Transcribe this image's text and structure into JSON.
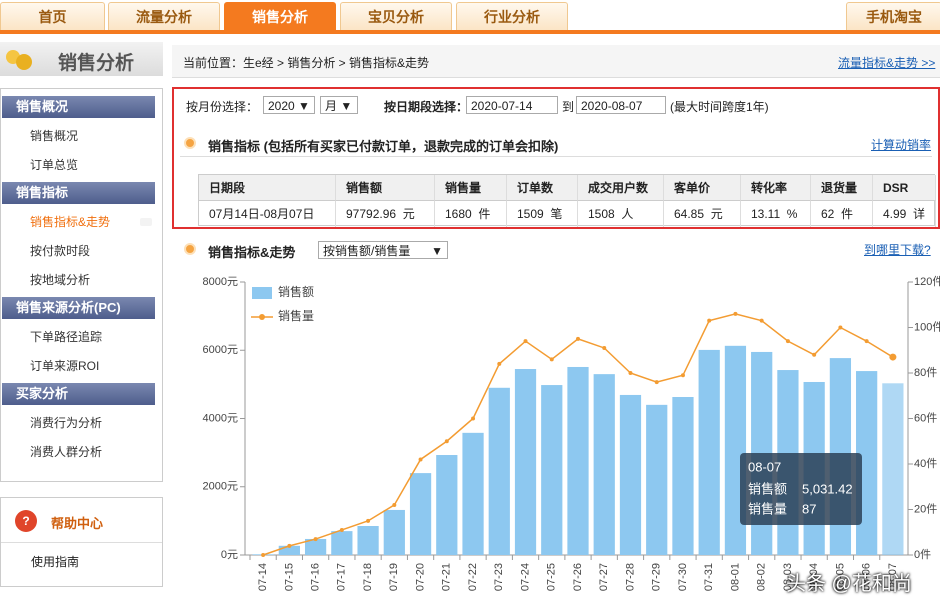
{
  "nav": {
    "tabs": [
      "首页",
      "流量分析",
      "销售分析",
      "宝贝分析",
      "行业分析"
    ],
    "active": 2,
    "right_tab": "手机淘宝"
  },
  "sidebar": {
    "title": "销售分析",
    "sections": [
      {
        "title": "销售概况",
        "items": [
          "销售概况",
          "订单总览"
        ]
      },
      {
        "title": "销售指标",
        "items": [
          "销售指标&走势",
          "按付款时段",
          "按地域分析"
        ]
      },
      {
        "title": "销售来源分析(PC)",
        "items": [
          "下单路径追踪",
          "订单来源ROI"
        ]
      },
      {
        "title": "买家分析",
        "items": [
          "消费行为分析",
          "消费人群分析"
        ]
      }
    ],
    "help": {
      "title": "帮助中心",
      "items": [
        "使用指南"
      ]
    }
  },
  "breadcrumb": {
    "text": "当前位置：生e经 > 销售分析 > 销售指标&走势",
    "link": "流量指标&走势 >>"
  },
  "filters": {
    "month_label": "按月份选择：",
    "year": "2020",
    "month": "月",
    "range_label": "按日期段选择：",
    "start": "2020-07-14",
    "to": "到",
    "end": "2020-08-07",
    "note": "(最大时间跨度1年)"
  },
  "metrics": {
    "title": "销售指标",
    "subtitle": "(包括所有买家已付款订单，退款完成的订单会扣除)",
    "link": "计算动销率",
    "table": {
      "headers": [
        "日期段",
        "销售额",
        "销售量",
        "订单数",
        "成交用户数",
        "客单价",
        "转化率",
        "退货量",
        "DSR"
      ],
      "rows": [
        [
          "07月14日-08月07日",
          "97792.96  元",
          "1680  件",
          "1509  笔",
          "1508  人",
          "64.85  元",
          "13.11  %",
          "62  件",
          "4.99  详"
        ]
      ]
    }
  },
  "trend": {
    "title": "销售指标&走势",
    "select": "按销售额/销售量",
    "link": "到哪里下载?"
  },
  "chart_data": {
    "type": "bar_line",
    "categories": [
      "07-14",
      "07-15",
      "07-16",
      "07-17",
      "07-18",
      "07-19",
      "07-20",
      "07-21",
      "07-22",
      "07-23",
      "07-24",
      "07-25",
      "07-26",
      "07-27",
      "07-28",
      "07-29",
      "07-30",
      "07-31",
      "08-01",
      "08-02",
      "08-03",
      "08-04",
      "08-05",
      "08-06",
      "08-07"
    ],
    "series": [
      {
        "name": "销售额",
        "type": "bar",
        "color": "#8dc8f0",
        "values": [
          20,
          270,
          470,
          700,
          850,
          1320,
          2400,
          2930,
          3580,
          4900,
          5450,
          4980,
          5510,
          5300,
          4690,
          4400,
          4630,
          6010,
          6130,
          5950,
          5420,
          5070,
          5770,
          5390,
          5031.42
        ],
        "value_labels": [
          null,
          null,
          null,
          null,
          null,
          null,
          null,
          null,
          null,
          null,
          null,
          null,
          null,
          null,
          null,
          null,
          null,
          null,
          null,
          null,
          null,
          null,
          null,
          null,
          "5,031.42"
        ]
      },
      {
        "name": "销售量",
        "type": "line",
        "axis": "y2",
        "color": "#f39c32",
        "values": [
          0,
          4,
          7,
          11,
          15,
          22,
          42,
          50,
          60,
          84,
          94,
          86,
          95,
          91,
          80,
          76,
          79,
          103,
          106,
          103,
          94,
          88,
          100,
          94,
          87
        ]
      }
    ],
    "ylim": [
      0,
      8000
    ],
    "yticks": [
      {
        "value": 0,
        "label": "0元"
      },
      {
        "value": 2000,
        "label": "2000元"
      },
      {
        "value": 4000,
        "label": "4000元"
      },
      {
        "value": 6000,
        "label": "6000元"
      },
      {
        "value": 8000,
        "label": "8000元"
      }
    ],
    "y2lim": [
      0,
      120
    ],
    "y2ticks": [
      {
        "value": 0,
        "label": "0件"
      },
      {
        "value": 20,
        "label": "20件"
      },
      {
        "value": 40,
        "label": "40件"
      },
      {
        "value": 60,
        "label": "60件"
      },
      {
        "value": 80,
        "label": "80件"
      },
      {
        "value": 100,
        "label": "100件"
      },
      {
        "value": 120,
        "label": "120件"
      }
    ],
    "grid": false
  },
  "watermark": "头条 @花和尚"
}
